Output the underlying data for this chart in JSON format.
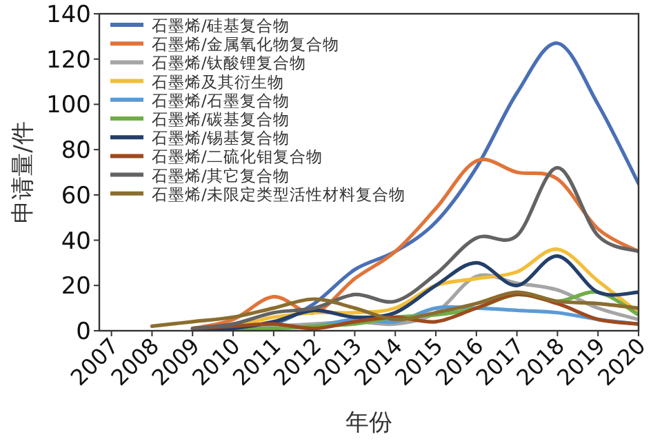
{
  "chart_data": {
    "type": "line",
    "xlabel": "年份",
    "ylabel": "申请量/件",
    "x": [
      2008,
      2009,
      2010,
      2011,
      2012,
      2013,
      2014,
      2015,
      2016,
      2017,
      2018,
      2019,
      2020
    ],
    "xlim": [
      2006.7,
      2020
    ],
    "xticks": [
      2007,
      2008,
      2009,
      2010,
      2011,
      2012,
      2013,
      2014,
      2015,
      2016,
      2017,
      2018,
      2019,
      2020
    ],
    "ylim": [
      0,
      140
    ],
    "yticks": [
      0,
      20,
      40,
      60,
      80,
      100,
      120,
      140
    ],
    "legend": "top left",
    "grid": false,
    "marker": "none",
    "line_style": "solid",
    "series": [
      {
        "name": "石墨烯/硅基复合物",
        "color": "#4a6fb5",
        "values": [
          null,
          0,
          1,
          3,
          12,
          27,
          35,
          48,
          72,
          105,
          127,
          100,
          65
        ]
      },
      {
        "name": "石墨烯/金属氧化物复合物",
        "color": "#e0743a",
        "values": [
          null,
          1,
          5,
          15,
          8,
          23,
          35,
          54,
          75,
          70,
          67,
          45,
          35
        ]
      },
      {
        "name": "石墨烯/钛酸锂复合物",
        "color": "#a5a5a5",
        "values": [
          null,
          0,
          1,
          2,
          3,
          4,
          3,
          8,
          24,
          21,
          18,
          10,
          5
        ]
      },
      {
        "name": "石墨烯及其衍生物",
        "color": "#f2be3a",
        "values": [
          null,
          1,
          2,
          6,
          8,
          8,
          10,
          20,
          23,
          26,
          36,
          22,
          8
        ]
      },
      {
        "name": "石墨烯/石墨复合物",
        "color": "#5b9bd5",
        "values": [
          null,
          null,
          null,
          1,
          2,
          5,
          4,
          10,
          10,
          9,
          8,
          5,
          3
        ]
      },
      {
        "name": "石墨烯/碳基复合物",
        "color": "#70ad47",
        "values": [
          null,
          0,
          1,
          1,
          2,
          3,
          6,
          7,
          10,
          16,
          13,
          17,
          7
        ]
      },
      {
        "name": "石墨烯/锡基复合物",
        "color": "#243f6a",
        "values": [
          null,
          0,
          1,
          4,
          9,
          6,
          8,
          20,
          30,
          20,
          33,
          17,
          17
        ]
      },
      {
        "name": "石墨烯/二硫化钼复合物",
        "color": "#9e4a1f",
        "values": [
          null,
          1,
          2,
          3,
          1,
          4,
          6,
          4,
          10,
          16,
          12,
          5,
          3
        ]
      },
      {
        "name": "石墨烯/其它复合物",
        "color": "#636363",
        "values": [
          null,
          1,
          3,
          8,
          10,
          16,
          13,
          25,
          41,
          42,
          72,
          42,
          35
        ]
      },
      {
        "name": "石墨烯/未限定类型活性材料复合物",
        "color": "#8a6e2f",
        "values": [
          2,
          4,
          6,
          10,
          14,
          10,
          5,
          8,
          12,
          17,
          13,
          12,
          10
        ]
      }
    ]
  }
}
